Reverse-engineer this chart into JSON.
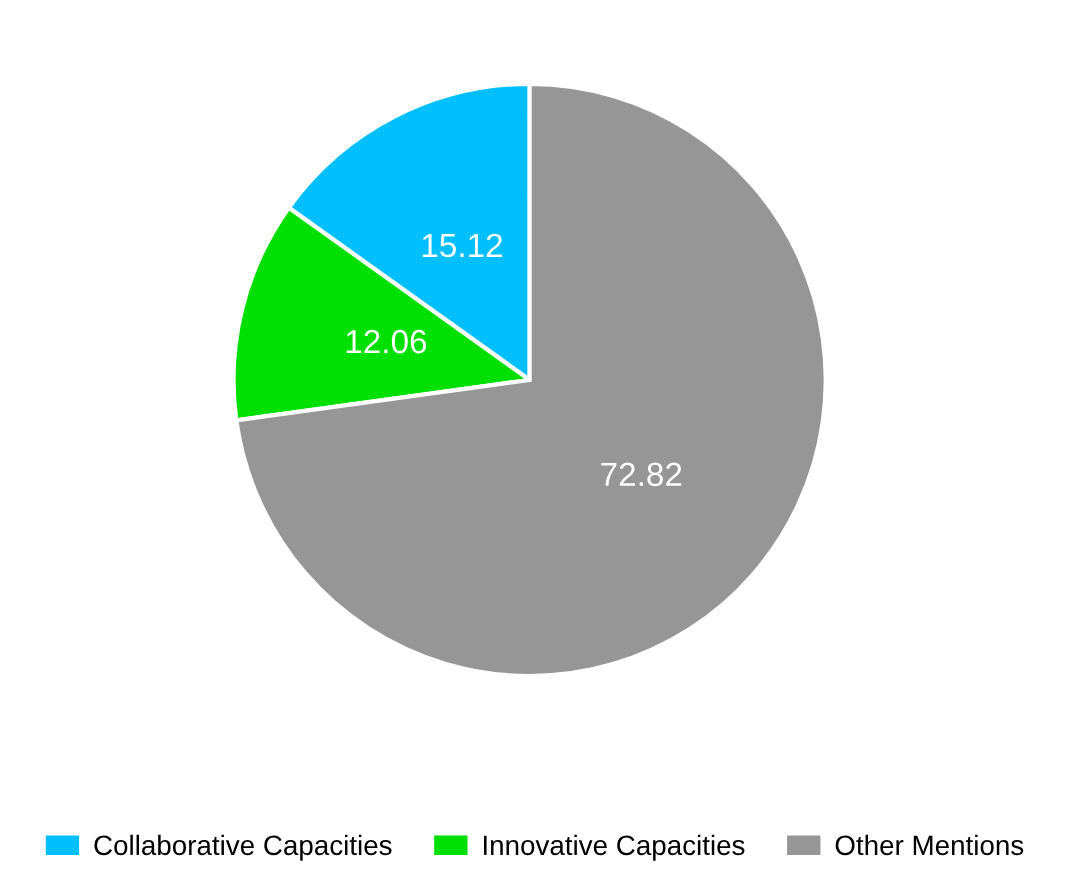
{
  "chart_data": {
    "type": "pie",
    "categories": [
      "Collaborative Capacities",
      "Innovative Capacities",
      "Other Mentions"
    ],
    "values": [
      15.12,
      12.06,
      72.82
    ],
    "colors": [
      "#00bfff",
      "#00e000",
      "#969696"
    ],
    "data_labels": true,
    "legend": "bottom"
  }
}
